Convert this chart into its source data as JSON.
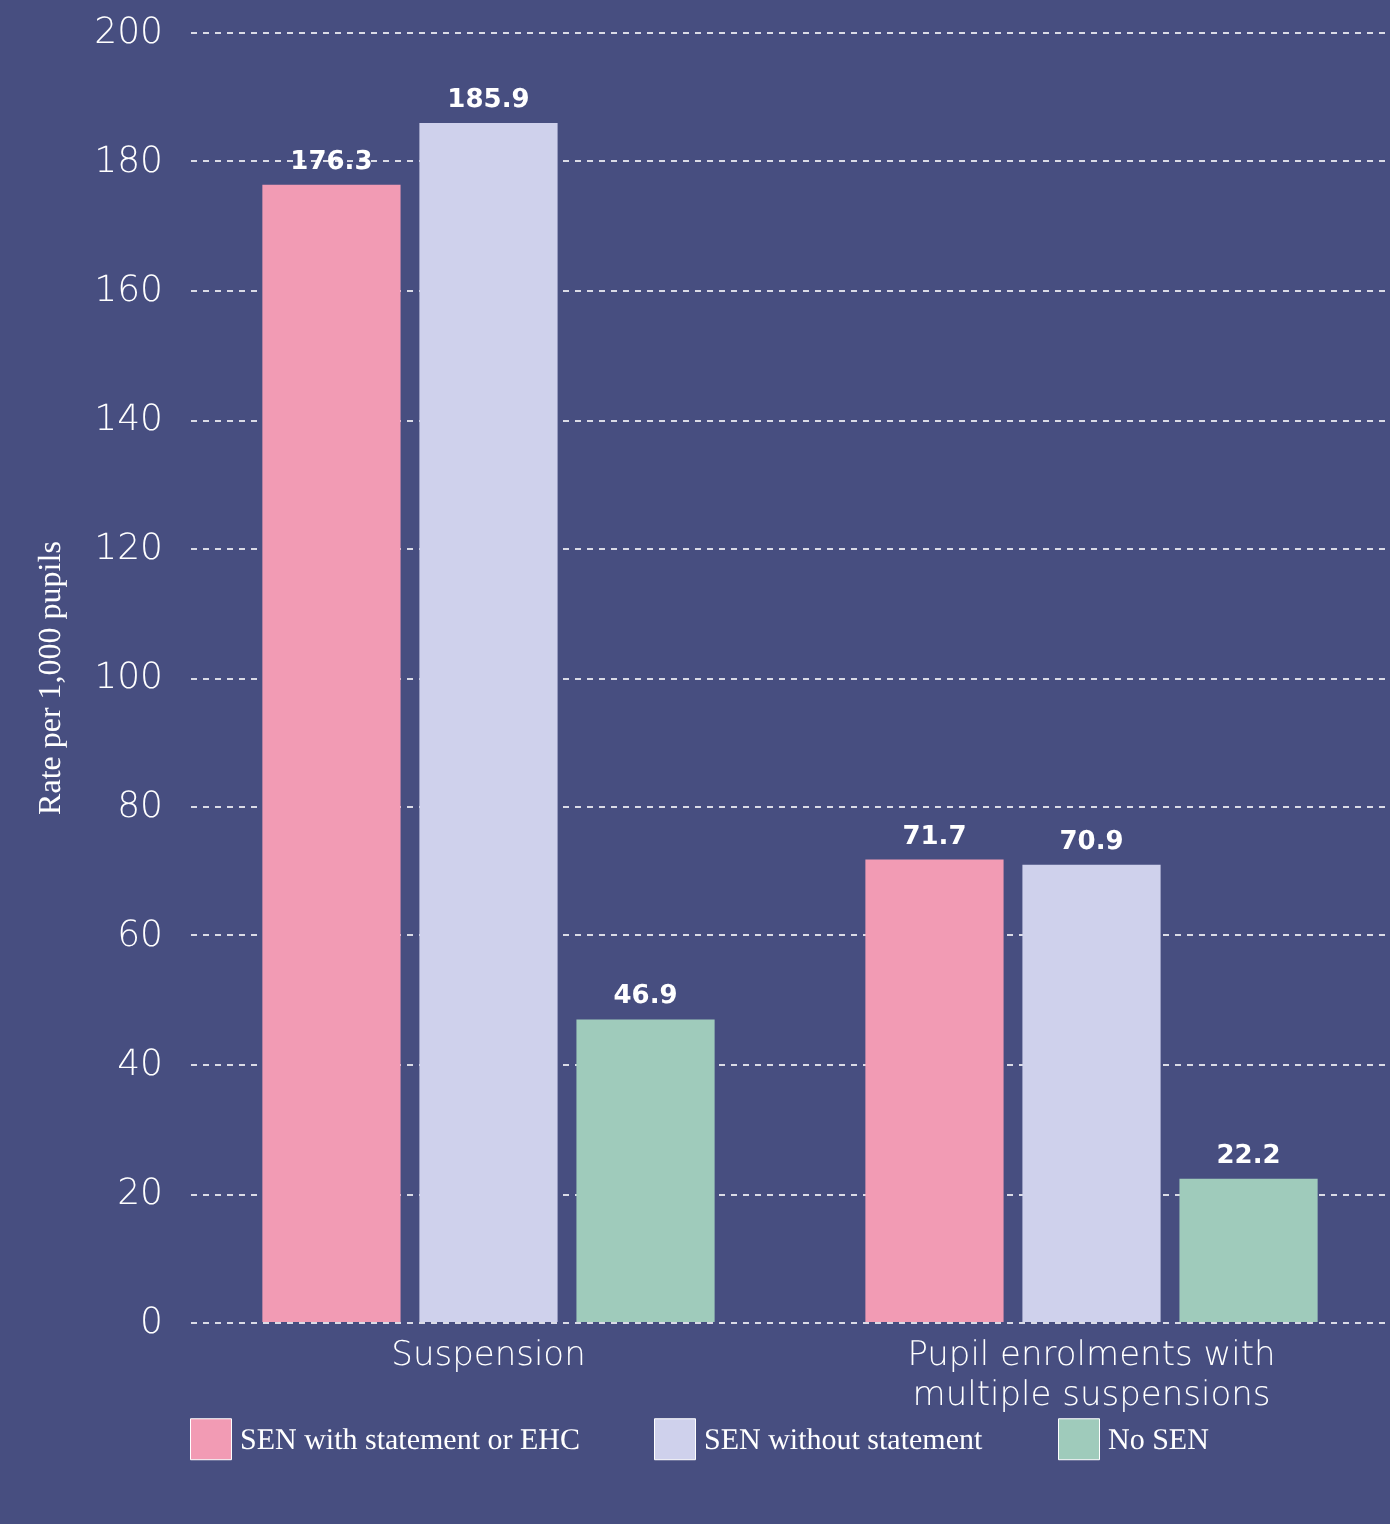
{
  "chart_data": {
    "type": "bar",
    "ylabel": "Rate per 1,000 pupils",
    "categories": [
      "Suspension",
      "Pupil enrolments with multiple suspensions"
    ],
    "series": [
      {
        "name": "SEN with statement or EHC",
        "color": "#f29bb4",
        "values": [
          176.3,
          71.7
        ]
      },
      {
        "name": "SEN without statement",
        "color": "#cfd1ec",
        "values": [
          185.9,
          70.9
        ]
      },
      {
        "name": "No SEN",
        "color": "#9fcbbb",
        "values": [
          46.9,
          22.2
        ]
      }
    ],
    "ylim": [
      0,
      200
    ],
    "yticks": [
      0,
      20,
      40,
      60,
      80,
      100,
      120,
      140,
      160,
      180,
      200
    ],
    "grid": "y",
    "legend": "bottom",
    "data_labels": true
  }
}
